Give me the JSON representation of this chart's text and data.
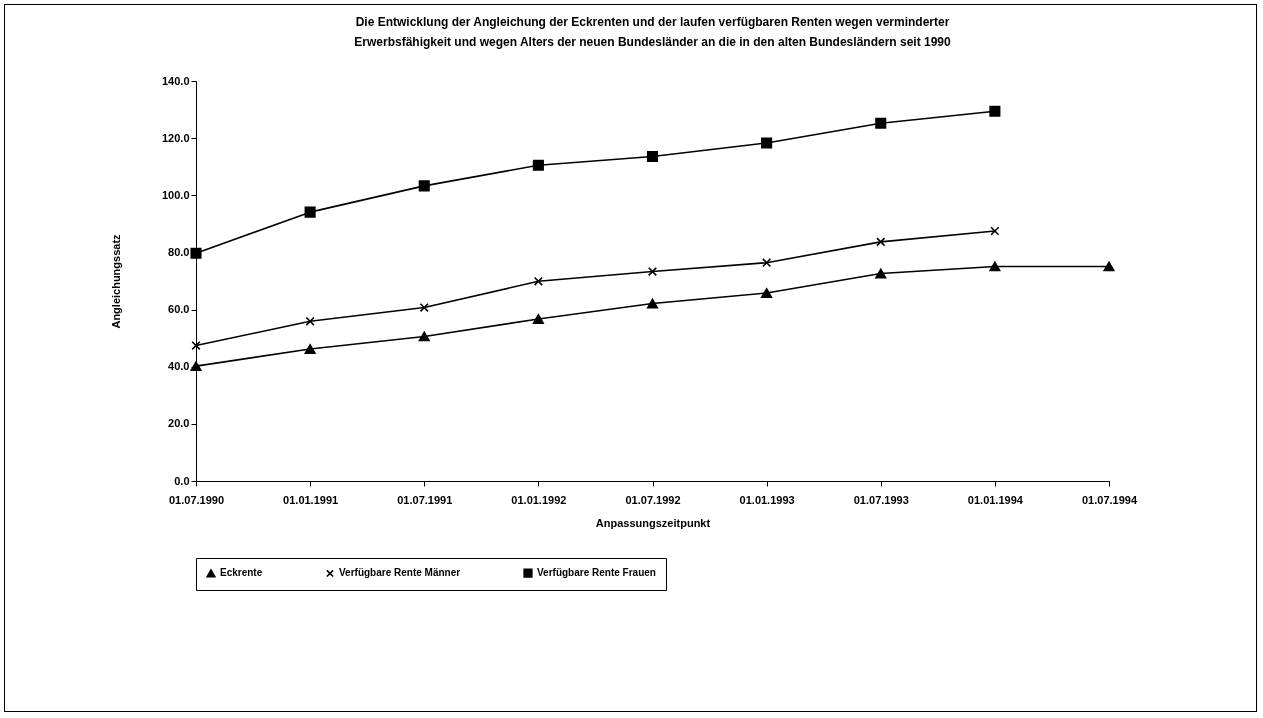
{
  "chart_data": {
    "type": "line",
    "title": "Die Entwicklung der Angleichung der Eckrenten und der laufen verfügbaren Renten wegen verminderter\nErwerbsfähigkeit und wegen Alters der neuen Bundesländer an die in den alten Bundesländern seit 1990",
    "xlabel": "Anpassungszeitpunkt",
    "ylabel": "Angleichungssatz",
    "categories": [
      "01.07.1990",
      "01.01.1991",
      "01.07.1991",
      "01.01.1992",
      "01.07.1992",
      "01.01.1993",
      "01.07.1993",
      "01.01.1994",
      "01.07.1994"
    ],
    "series": [
      {
        "name": "Eckrente",
        "color": "#000000",
        "marker": "triangle",
        "values": [
          40.2,
          46.2,
          50.6,
          56.7,
          62.1,
          65.8,
          72.6,
          75.1,
          75.1
        ]
      },
      {
        "name": "Verfügbare Rente Männer",
        "color": "#000000",
        "marker": "cross",
        "values": [
          47.4,
          55.9,
          60.7,
          69.9,
          73.3,
          76.4,
          83.7,
          87.5,
          null
        ]
      },
      {
        "name": "Verfügbare Rente Frauen",
        "color": "#000000",
        "marker": "square",
        "values": [
          79.7,
          94.1,
          103.3,
          110.5,
          113.6,
          118.3,
          125.2,
          129.4,
          null
        ]
      }
    ],
    "ylim": [
      0,
      140
    ],
    "yticks": [
      {
        "value": 0,
        "label": "0.0"
      },
      {
        "value": 20,
        "label": "20.0"
      },
      {
        "value": 40,
        "label": "40.0"
      },
      {
        "value": 60,
        "label": "60.0"
      },
      {
        "value": 80,
        "label": "80.0"
      },
      {
        "value": 100,
        "label": "100.0"
      },
      {
        "value": 120,
        "label": "120.0"
      },
      {
        "value": 140,
        "label": "140.0"
      }
    ],
    "grid": false,
    "legend": "bottom",
    "line_style": "solid"
  }
}
